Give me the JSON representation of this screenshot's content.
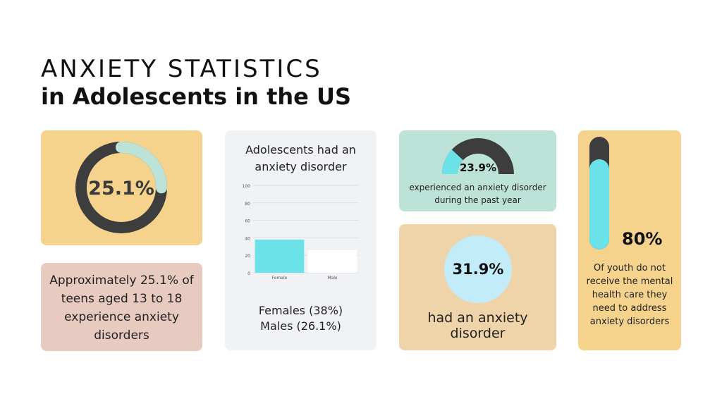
{
  "title": {
    "line1": "ANXIETY STATISTICS",
    "line2": "in Adolescents in the US"
  },
  "colors": {
    "dark": "#3d3d3d",
    "teal_light": "#bde3d8",
    "cyan": "#6be2e8",
    "yellow": "#f5d38d",
    "pink": "#e7cbc0",
    "tan": "#efd4a9",
    "gray_bg": "#f0f2f5"
  },
  "card1": {
    "value_label": "25.1%",
    "value": 25.1
  },
  "card2": {
    "text": "Approximately 25.1% of teens aged 13 to 18 experience anxiety disorders"
  },
  "card3": {
    "heading": "Adolescents had an anxiety disorder",
    "caption_line1": "Females (38%)",
    "caption_line2": "Males (26.1%)"
  },
  "card4": {
    "value_label": "23.9%",
    "value": 23.9,
    "text": "experienced an anxiety disorder during the past year"
  },
  "card5": {
    "value_label": "31.9%",
    "text": "had an anxiety disorder"
  },
  "card6": {
    "value_label": "80%",
    "value": 80,
    "text": "Of youth do not receive the mental health care they need to address anxiety disorders"
  },
  "chart_data": [
    {
      "type": "bar",
      "title": "Adolescents had an anxiety disorder",
      "categories": [
        "Female",
        "Male"
      ],
      "values": [
        38,
        26.1
      ],
      "ylim": [
        0,
        100
      ],
      "yticks": [
        0,
        20,
        40,
        60,
        80,
        100
      ],
      "grid": true,
      "colors": [
        "#6be2e8",
        "#ffffff"
      ]
    }
  ]
}
